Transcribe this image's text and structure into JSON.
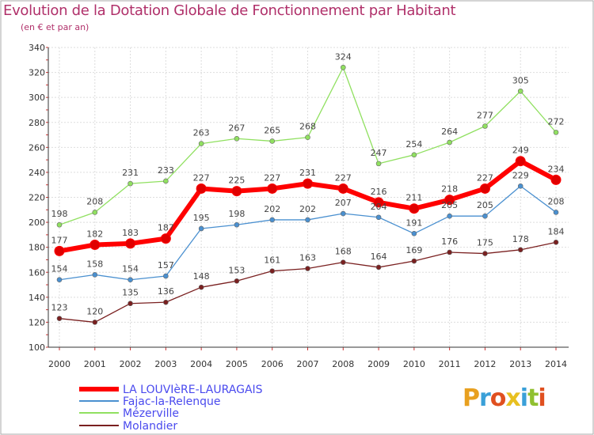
{
  "chart_data": {
    "type": "line",
    "title": "Evolution de la Dotation Globale de Fonctionnement par Habitant",
    "subtitle": "(en € et par an)",
    "xlabel": "",
    "ylabel": "",
    "ylim": [
      100,
      340
    ],
    "yticks": [
      100,
      120,
      140,
      160,
      180,
      200,
      220,
      240,
      260,
      280,
      300,
      320,
      340
    ],
    "grid": true,
    "legend_position": "bottom-left",
    "x": [
      "2000",
      "2001",
      "2002",
      "2003",
      "2004",
      "2005",
      "2006",
      "2007",
      "2008",
      "2009",
      "2010",
      "2011",
      "2012",
      "2013",
      "2014"
    ],
    "series": [
      {
        "name": "LA LOUVIèRE-LAURAGAIS",
        "color": "#ff0000",
        "values": [
          177,
          182,
          183,
          187,
          227,
          225,
          227,
          231,
          227,
          216,
          211,
          218,
          227,
          249,
          234
        ]
      },
      {
        "name": "Fajac-la-Relenque",
        "color": "#4a90d0",
        "values": [
          154,
          158,
          154,
          157,
          195,
          198,
          202,
          202,
          207,
          204,
          191,
          205,
          205,
          229,
          208
        ]
      },
      {
        "name": "Mézerville",
        "color": "#90e060",
        "values": [
          198,
          208,
          231,
          233,
          263,
          267,
          265,
          268,
          324,
          247,
          254,
          264,
          277,
          305,
          272
        ]
      },
      {
        "name": "Molandier",
        "color": "#7a2020",
        "values": [
          123,
          120,
          135,
          136,
          148,
          153,
          161,
          163,
          168,
          164,
          169,
          176,
          175,
          178,
          184
        ]
      }
    ]
  },
  "logo": {
    "text": "Proxiti",
    "colors": [
      "#e8a020",
      "#3aa0d8",
      "#e05020",
      "#e8c020",
      "#3aa0d8",
      "#90c030",
      "#e05020"
    ]
  }
}
